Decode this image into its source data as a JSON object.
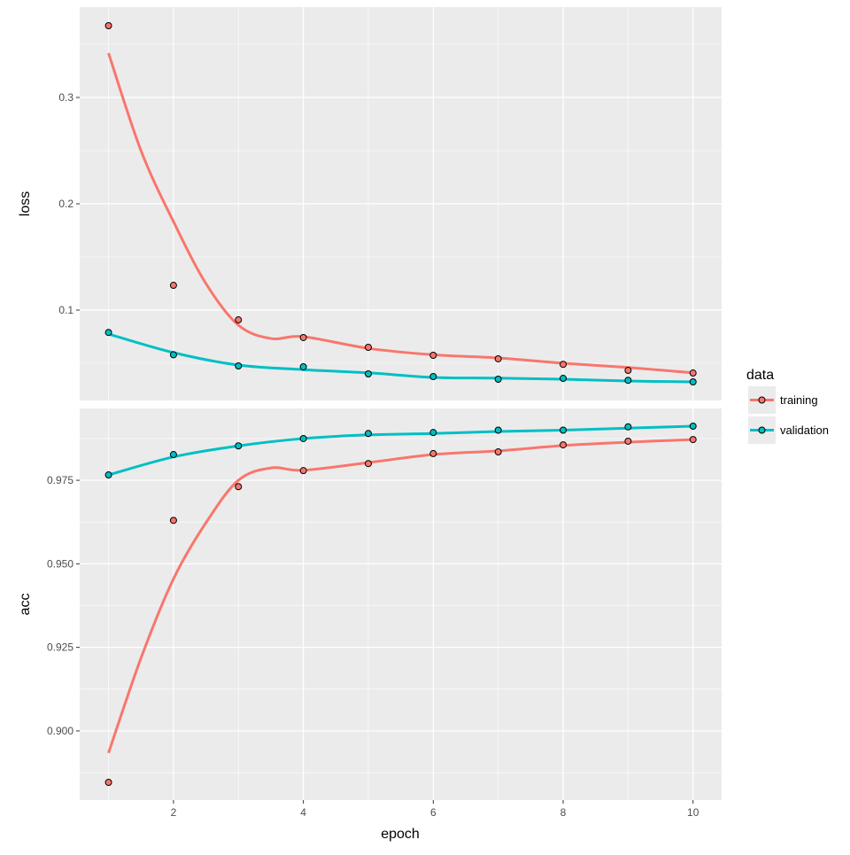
{
  "chart_data": {
    "type": "line",
    "title": "",
    "xlabel": "epoch",
    "x_ticks": [
      2,
      4,
      6,
      8,
      10
    ],
    "xlim": [
      0.556,
      10.44
    ],
    "grid": true,
    "legend": {
      "title": "data",
      "placement": "right",
      "entries": [
        "training",
        "validation"
      ]
    },
    "colors": {
      "training": "#F8766D",
      "validation": "#00BFC4",
      "panel": "#EBEBEB",
      "grid": "#FFFFFF",
      "axis_text": "#4D4D4D"
    },
    "x": [
      1,
      2,
      3,
      4,
      5,
      6,
      7,
      8,
      9,
      10
    ],
    "panels": [
      {
        "metric": "loss",
        "ylabel": "loss",
        "ylim": [
          0.015,
          0.385
        ],
        "y_ticks": [
          0.1,
          0.2,
          0.3
        ],
        "y_tick_labels": [
          "0.1",
          "0.2",
          "0.3"
        ],
        "series": [
          {
            "name": "training",
            "values": [
              0.3675,
              0.1233,
              0.0908,
              0.0742,
              0.065,
              0.0575,
              0.0542,
              0.049,
              0.0433,
              0.0408
            ],
            "smooth_x": [
              1,
              1.5,
              2,
              2.5,
              3,
              3.5,
              4,
              5,
              6,
              7,
              8,
              9,
              10
            ],
            "smooth": [
              0.3417,
              0.25,
              0.1833,
              0.125,
              0.0858,
              0.0733,
              0.075,
              0.064,
              0.058,
              0.055,
              0.05,
              0.046,
              0.041
            ]
          },
          {
            "name": "validation",
            "values": [
              0.079,
              0.058,
              0.0475,
              0.0467,
              0.04,
              0.0375,
              0.035,
              0.0358,
              0.034,
              0.0325
            ],
            "smooth_x": [
              1,
              2,
              3,
              4,
              5,
              6,
              7,
              8,
              9,
              10
            ],
            "smooth": [
              0.0775,
              0.06,
              0.0483,
              0.044,
              0.041,
              0.0367,
              0.036,
              0.035,
              0.0333,
              0.0325
            ]
          }
        ]
      },
      {
        "metric": "acc",
        "ylabel": "acc",
        "ylim": [
          0.8793,
          0.9965
        ],
        "y_ticks": [
          0.9,
          0.925,
          0.95,
          0.975
        ],
        "y_tick_labels": [
          "0.900",
          "0.925",
          "0.950",
          "0.975"
        ],
        "series": [
          {
            "name": "training",
            "values": [
              0.8846,
              0.963,
              0.9731,
              0.9779,
              0.98,
              0.983,
              0.9835,
              0.9856,
              0.9867,
              0.9872
            ],
            "smooth_x": [
              1,
              1.5,
              2,
              2.5,
              3,
              3.5,
              4,
              5,
              6,
              7,
              8,
              9,
              10
            ],
            "smooth": [
              0.8934,
              0.9218,
              0.9455,
              0.9623,
              0.975,
              0.9787,
              0.978,
              0.9803,
              0.9827,
              0.9838,
              0.9854,
              0.9864,
              0.9872
            ]
          },
          {
            "name": "validation",
            "values": [
              0.9766,
              0.9827,
              0.9853,
              0.9875,
              0.989,
              0.9893,
              0.99,
              0.99,
              0.991,
              0.9912
            ],
            "smooth_x": [
              1,
              2,
              3,
              4,
              5,
              6,
              7,
              8,
              9,
              10
            ],
            "smooth": [
              0.9766,
              0.982,
              0.9853,
              0.9875,
              0.9886,
              0.989,
              0.9896,
              0.99,
              0.9906,
              0.9912
            ]
          }
        ]
      }
    ]
  }
}
